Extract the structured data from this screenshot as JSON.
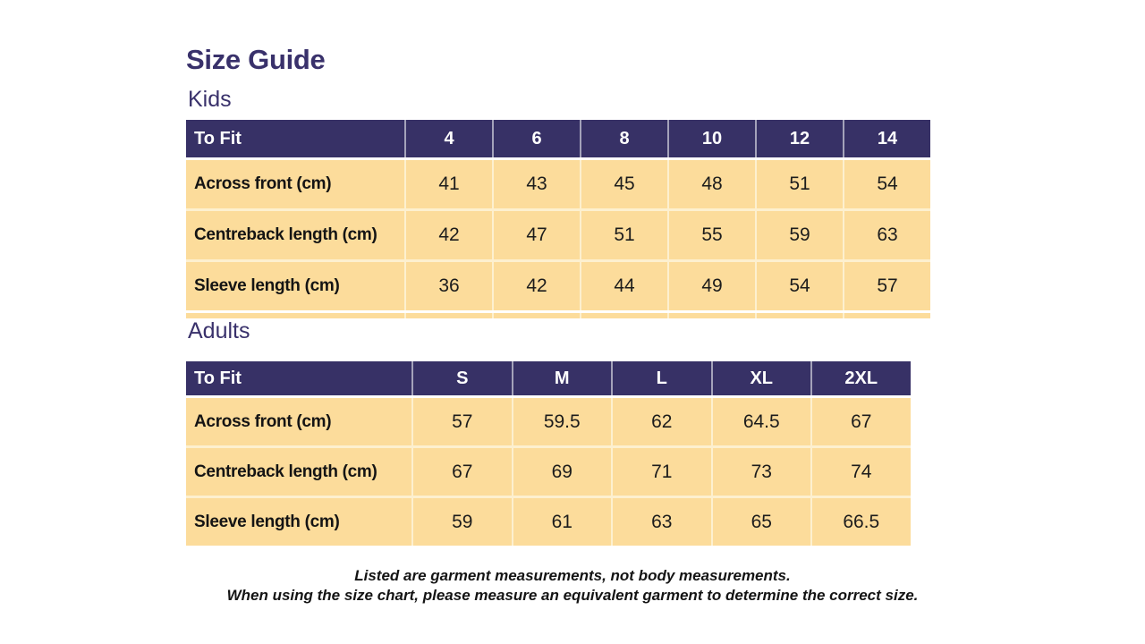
{
  "page": {
    "title": "Size Guide"
  },
  "colors": {
    "heading_ink": "#39316B",
    "table_header_bg": "#373166",
    "table_header_text": "#FFFFFF",
    "table_body_bg": "#FCDC9B",
    "table_divider": "#FDF0CF",
    "body_text": "#1C1C1C"
  },
  "kids": {
    "label": "Kids",
    "header": {
      "to_fit": "To Fit",
      "sizes": [
        "4",
        "6",
        "8",
        "10",
        "12",
        "14"
      ]
    },
    "rows": [
      {
        "label": "Across front (cm)",
        "values": [
          "41",
          "43",
          "45",
          "48",
          "51",
          "54"
        ]
      },
      {
        "label": "Centreback length (cm)",
        "values": [
          "42",
          "47",
          "51",
          "55",
          "59",
          "63"
        ]
      },
      {
        "label": "Sleeve length (cm)",
        "values": [
          "36",
          "42",
          "44",
          "49",
          "54",
          "57"
        ]
      }
    ]
  },
  "adults": {
    "label": "Adults",
    "header": {
      "to_fit": "To Fit",
      "sizes": [
        "S",
        "M",
        "L",
        "XL",
        "2XL"
      ]
    },
    "rows": [
      {
        "label": "Across front (cm)",
        "values": [
          "57",
          "59.5",
          "62",
          "64.5",
          "67"
        ]
      },
      {
        "label": "Centreback length (cm)",
        "values": [
          "67",
          "69",
          "71",
          "73",
          "74"
        ]
      },
      {
        "label": "Sleeve length (cm)",
        "values": [
          "59",
          "61",
          "63",
          "65",
          "66.5"
        ]
      }
    ]
  },
  "footnote": {
    "line1": "Listed are garment measurements, not body measurements.",
    "line2": "When using the size chart, please measure an equivalent garment to determine the correct size."
  }
}
